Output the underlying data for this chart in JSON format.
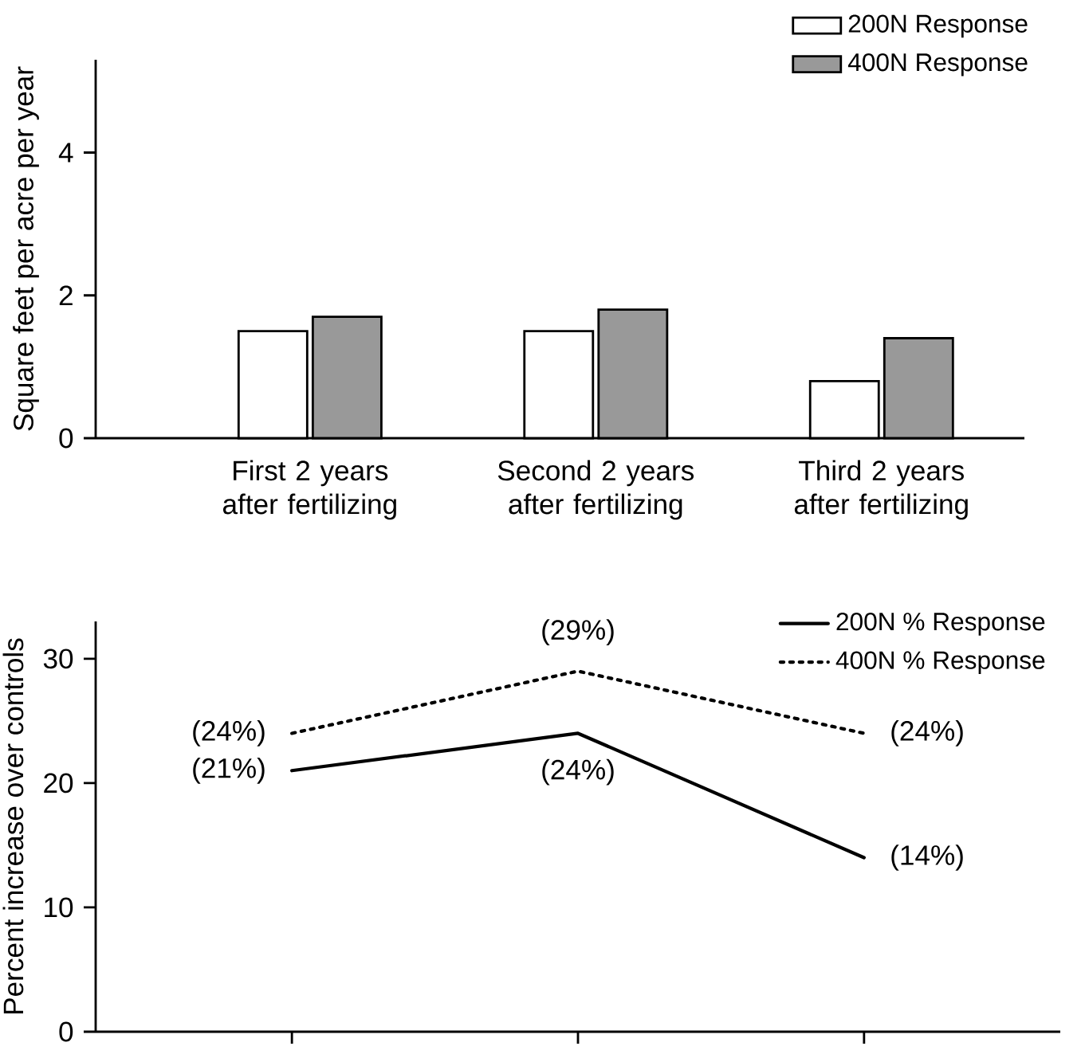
{
  "chart_data": [
    {
      "type": "bar",
      "ylabel": "Square feet per acre per year",
      "categories": [
        "First 2 years after fertilizing",
        "Second 2 years after fertilizing",
        "Third 2 years after fertilizing"
      ],
      "series": [
        {
          "name": "200N Response",
          "color": "#ffffff",
          "values": [
            1.5,
            1.5,
            0.8
          ]
        },
        {
          "name": "400N Response",
          "color": "#999999",
          "values": [
            1.7,
            1.8,
            1.4
          ]
        }
      ],
      "ylim": [
        0,
        5.3
      ],
      "yticks": [
        0,
        2,
        4
      ],
      "legend": "top right"
    },
    {
      "type": "line",
      "ylabel": "Percent increase over controls",
      "categories": [
        null,
        null,
        null
      ],
      "series": [
        {
          "name": "200N % Response",
          "color": "#000000",
          "line_style": "solid",
          "values": [
            21,
            24,
            14
          ],
          "value_labels": [
            "(21%)",
            "(24%)",
            "(14%)"
          ]
        },
        {
          "name": "400N % Response",
          "color": "#000000",
          "line_style": "dotted",
          "values": [
            24,
            29,
            24
          ],
          "value_labels": [
            "(24%)",
            "(29%)",
            "(24%)"
          ]
        }
      ],
      "ylim": [
        0,
        33
      ],
      "yticks": [
        0,
        10,
        20,
        30
      ],
      "tick_labels": "y",
      "legend": "top right"
    }
  ]
}
